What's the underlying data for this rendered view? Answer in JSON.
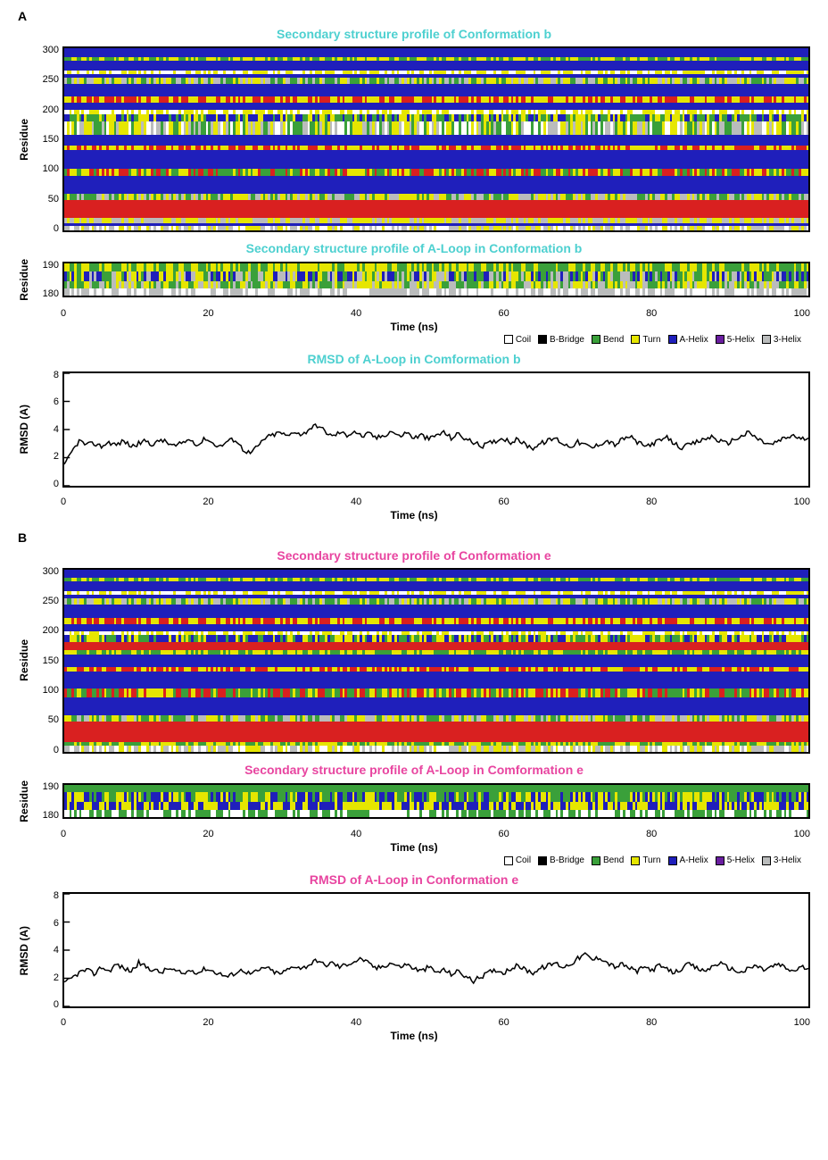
{
  "panelA": {
    "label": "A",
    "title_color": "#4dd0d0",
    "chart1": {
      "title": "Secondary structure profile of Conformation b",
      "type": "heatmap",
      "ylabel": "Residue",
      "xlabel": "Time (ns)",
      "ylim": [
        0,
        300
      ],
      "xlim": [
        0,
        100
      ],
      "yticks": [
        0,
        50,
        100,
        150,
        200,
        250,
        300
      ],
      "xticks": [
        0,
        20,
        40,
        60,
        80,
        100
      ],
      "bands": [
        {
          "y": 0,
          "h": 8,
          "colors": [
            "#ffffff",
            "#babcbc",
            "#e6e600"
          ]
        },
        {
          "y": 8,
          "h": 4,
          "colors": [
            "#1f1fbb"
          ]
        },
        {
          "y": 12,
          "h": 8,
          "colors": [
            "#e6e600",
            "#babcbc"
          ]
        },
        {
          "y": 20,
          "h": 30,
          "colors": [
            "#d92020"
          ]
        },
        {
          "y": 50,
          "h": 10,
          "colors": [
            "#e6e600",
            "#3aa03a",
            "#babcbc"
          ]
        },
        {
          "y": 60,
          "h": 30,
          "colors": [
            "#1f1fbb"
          ]
        },
        {
          "y": 90,
          "h": 12,
          "colors": [
            "#e6e600",
            "#3aa03a",
            "#d92020"
          ]
        },
        {
          "y": 102,
          "h": 30,
          "colors": [
            "#1f1fbb"
          ]
        },
        {
          "y": 132,
          "h": 8,
          "colors": [
            "#d92020",
            "#e6e600"
          ]
        },
        {
          "y": 140,
          "h": 18,
          "colors": [
            "#1f1fbb"
          ]
        },
        {
          "y": 158,
          "h": 22,
          "colors": [
            "#e6e600",
            "#3aa03a",
            "#ffffff",
            "#babcbc"
          ]
        },
        {
          "y": 180,
          "h": 12,
          "colors": [
            "#1f1fbb",
            "#e6e600",
            "#3aa03a"
          ]
        },
        {
          "y": 192,
          "h": 6,
          "colors": [
            "#e6e600",
            "#ffffff"
          ]
        },
        {
          "y": 198,
          "h": 12,
          "colors": [
            "#1f1fbb"
          ]
        },
        {
          "y": 210,
          "h": 10,
          "colors": [
            "#d92020",
            "#e6e600"
          ]
        },
        {
          "y": 220,
          "h": 22,
          "colors": [
            "#1f1fbb"
          ]
        },
        {
          "y": 242,
          "h": 10,
          "colors": [
            "#e6e600",
            "#3aa03a",
            "#babcbc"
          ]
        },
        {
          "y": 252,
          "h": 6,
          "colors": [
            "#1f1fbb"
          ]
        },
        {
          "y": 258,
          "h": 6,
          "colors": [
            "#e6e600",
            "#ffffff"
          ]
        },
        {
          "y": 264,
          "h": 16,
          "colors": [
            "#1f1fbb"
          ]
        },
        {
          "y": 280,
          "h": 6,
          "colors": [
            "#e6e600",
            "#3aa03a"
          ]
        },
        {
          "y": 286,
          "h": 14,
          "colors": [
            "#1f1fbb"
          ]
        }
      ]
    },
    "chart2": {
      "title": "Secondary structure profile of A-Loop in Conformation b",
      "type": "heatmap",
      "ylabel": "Residue",
      "ylim": [
        180,
        190
      ],
      "yticks": [
        180,
        190
      ],
      "bands": [
        {
          "h": 3,
          "colors": [
            "#babcbc",
            "#ffffff"
          ]
        },
        {
          "h": 3,
          "colors": [
            "#e6e600",
            "#babcbc",
            "#3aa03a"
          ]
        },
        {
          "h": 4,
          "colors": [
            "#1f1fbb",
            "#e6e600",
            "#3aa03a",
            "#babcbc"
          ]
        },
        {
          "h": 3,
          "colors": [
            "#3aa03a",
            "#e6e600"
          ]
        }
      ]
    },
    "chart3": {
      "title": "RMSD of A-Loop in Comformation b",
      "type": "line",
      "ylabel": "RMSD (A)",
      "xlabel": "Time (ns)",
      "ylim": [
        0,
        8
      ],
      "xlim": [
        0,
        100
      ],
      "yticks": [
        0,
        2,
        4,
        6,
        8
      ],
      "xticks": [
        0,
        20,
        40,
        60,
        80,
        100
      ],
      "line_color": "#000000",
      "line_width": 1.5,
      "data": [
        [
          0,
          1.4
        ],
        [
          1,
          2.4
        ],
        [
          2,
          3.2
        ],
        [
          3,
          2.9
        ],
        [
          4,
          3.0
        ],
        [
          5,
          2.8
        ],
        [
          6,
          3.1
        ],
        [
          7,
          2.9
        ],
        [
          8,
          3.2
        ],
        [
          9,
          2.8
        ],
        [
          10,
          3.0
        ],
        [
          11,
          3.2
        ],
        [
          12,
          2.9
        ],
        [
          13,
          3.3
        ],
        [
          14,
          3.0
        ],
        [
          15,
          2.8
        ],
        [
          16,
          3.1
        ],
        [
          17,
          3.3
        ],
        [
          18,
          2.9
        ],
        [
          19,
          3.4
        ],
        [
          20,
          3.0
        ],
        [
          21,
          2.8
        ],
        [
          22,
          3.2
        ],
        [
          23,
          3.3
        ],
        [
          24,
          2.6
        ],
        [
          25,
          2.3
        ],
        [
          26,
          2.8
        ],
        [
          27,
          3.4
        ],
        [
          28,
          3.6
        ],
        [
          29,
          3.8
        ],
        [
          30,
          3.5
        ],
        [
          31,
          3.9
        ],
        [
          32,
          3.6
        ],
        [
          33,
          4.1
        ],
        [
          34,
          4.3
        ],
        [
          35,
          3.9
        ],
        [
          36,
          3.5
        ],
        [
          37,
          3.8
        ],
        [
          38,
          3.6
        ],
        [
          39,
          3.9
        ],
        [
          40,
          3.5
        ],
        [
          41,
          3.7
        ],
        [
          42,
          3.4
        ],
        [
          43,
          3.6
        ],
        [
          44,
          3.9
        ],
        [
          45,
          3.5
        ],
        [
          46,
          3.8
        ],
        [
          47,
          3.4
        ],
        [
          48,
          3.6
        ],
        [
          49,
          3.3
        ],
        [
          50,
          3.6
        ],
        [
          51,
          3.8
        ],
        [
          52,
          3.4
        ],
        [
          53,
          3.7
        ],
        [
          54,
          3.3
        ],
        [
          55,
          3.1
        ],
        [
          56,
          2.8
        ],
        [
          57,
          3.0
        ],
        [
          58,
          3.2
        ],
        [
          59,
          3.4
        ],
        [
          60,
          3.1
        ],
        [
          61,
          3.3
        ],
        [
          62,
          2.9
        ],
        [
          63,
          2.7
        ],
        [
          64,
          3.0
        ],
        [
          65,
          3.2
        ],
        [
          66,
          3.4
        ],
        [
          67,
          3.0
        ],
        [
          68,
          2.8
        ],
        [
          69,
          3.1
        ],
        [
          70,
          2.9
        ],
        [
          71,
          2.7
        ],
        [
          72,
          3.0
        ],
        [
          73,
          3.2
        ],
        [
          74,
          2.9
        ],
        [
          75,
          3.3
        ],
        [
          76,
          3.5
        ],
        [
          77,
          3.1
        ],
        [
          78,
          2.8
        ],
        [
          79,
          3.0
        ],
        [
          80,
          3.2
        ],
        [
          81,
          3.4
        ],
        [
          82,
          3.0
        ],
        [
          83,
          2.7
        ],
        [
          84,
          2.9
        ],
        [
          85,
          3.1
        ],
        [
          86,
          3.3
        ],
        [
          87,
          3.5
        ],
        [
          88,
          3.2
        ],
        [
          89,
          3.0
        ],
        [
          90,
          3.3
        ],
        [
          91,
          3.5
        ],
        [
          92,
          3.8
        ],
        [
          93,
          3.4
        ],
        [
          94,
          3.1
        ],
        [
          95,
          2.9
        ],
        [
          96,
          3.2
        ],
        [
          97,
          3.4
        ],
        [
          98,
          3.6
        ],
        [
          99,
          3.3
        ],
        [
          100,
          3.4
        ]
      ]
    }
  },
  "panelB": {
    "label": "B",
    "title_color": "#e845a0",
    "chart1": {
      "title": "Secondary structure profile of Conformation e",
      "type": "heatmap",
      "ylabel": "Residue",
      "ylim": [
        0,
        300
      ],
      "yticks": [
        0,
        50,
        100,
        150,
        200,
        250,
        300
      ],
      "bands": [
        {
          "y": 0,
          "h": 10,
          "colors": [
            "#ffffff",
            "#babcbc",
            "#e6e600"
          ]
        },
        {
          "y": 10,
          "h": 6,
          "colors": [
            "#3aa03a",
            "#e6e600"
          ]
        },
        {
          "y": 16,
          "h": 34,
          "colors": [
            "#d92020"
          ]
        },
        {
          "y": 50,
          "h": 10,
          "colors": [
            "#e6e600",
            "#3aa03a",
            "#babcbc"
          ]
        },
        {
          "y": 60,
          "h": 30,
          "colors": [
            "#1f1fbb"
          ]
        },
        {
          "y": 90,
          "h": 14,
          "colors": [
            "#d92020",
            "#e6e600",
            "#3aa03a"
          ]
        },
        {
          "y": 104,
          "h": 28,
          "colors": [
            "#1f1fbb"
          ]
        },
        {
          "y": 132,
          "h": 8,
          "colors": [
            "#d92020",
            "#e6e600"
          ]
        },
        {
          "y": 140,
          "h": 20,
          "colors": [
            "#1f1fbb"
          ]
        },
        {
          "y": 160,
          "h": 8,
          "colors": [
            "#e6e600",
            "#3aa03a"
          ]
        },
        {
          "y": 168,
          "h": 12,
          "colors": [
            "#d92020"
          ]
        },
        {
          "y": 180,
          "h": 12,
          "colors": [
            "#1f1fbb",
            "#3aa03a",
            "#e6e600"
          ]
        },
        {
          "y": 192,
          "h": 6,
          "colors": [
            "#e6e600",
            "#ffffff"
          ]
        },
        {
          "y": 198,
          "h": 12,
          "colors": [
            "#1f1fbb"
          ]
        },
        {
          "y": 210,
          "h": 10,
          "colors": [
            "#d92020",
            "#e6e600"
          ]
        },
        {
          "y": 220,
          "h": 22,
          "colors": [
            "#1f1fbb"
          ]
        },
        {
          "y": 242,
          "h": 10,
          "colors": [
            "#e6e600",
            "#3aa03a",
            "#babcbc"
          ]
        },
        {
          "y": 252,
          "h": 6,
          "colors": [
            "#1f1fbb"
          ]
        },
        {
          "y": 258,
          "h": 6,
          "colors": [
            "#e6e600",
            "#ffffff"
          ]
        },
        {
          "y": 264,
          "h": 16,
          "colors": [
            "#1f1fbb"
          ]
        },
        {
          "y": 280,
          "h": 6,
          "colors": [
            "#e6e600",
            "#3aa03a"
          ]
        },
        {
          "y": 286,
          "h": 14,
          "colors": [
            "#1f1fbb"
          ]
        }
      ]
    },
    "chart2": {
      "title": "Secondary structure profile of A-Loop in Comformation e",
      "type": "heatmap",
      "ylabel": "Residue",
      "ylim": [
        180,
        190
      ],
      "yticks": [
        180,
        190
      ],
      "bands": [
        {
          "h": 3,
          "colors": [
            "#ffffff",
            "#3aa03a"
          ]
        },
        {
          "h": 3,
          "colors": [
            "#e6e600",
            "#1f1fbb"
          ]
        },
        {
          "h": 4,
          "colors": [
            "#1f1fbb",
            "#e6e600",
            "#3aa03a"
          ]
        },
        {
          "h": 3,
          "colors": [
            "#3aa03a"
          ]
        }
      ]
    },
    "chart3": {
      "title": "RMSD of A-Loop in Conformation e",
      "type": "line",
      "ylabel": "RMSD (A)",
      "xlabel": "Time (ns)",
      "ylim": [
        0,
        8
      ],
      "yticks": [
        0,
        2,
        4,
        6,
        8
      ],
      "xticks": [
        0,
        20,
        40,
        60,
        80,
        100
      ],
      "line_color": "#000000",
      "line_width": 1.5,
      "data": [
        [
          0,
          1.6
        ],
        [
          1,
          2.0
        ],
        [
          2,
          2.4
        ],
        [
          3,
          2.6
        ],
        [
          4,
          2.3
        ],
        [
          5,
          2.8
        ],
        [
          6,
          2.5
        ],
        [
          7,
          3.0
        ],
        [
          8,
          2.7
        ],
        [
          9,
          2.5
        ],
        [
          10,
          3.1
        ],
        [
          11,
          2.8
        ],
        [
          12,
          2.6
        ],
        [
          13,
          2.4
        ],
        [
          14,
          2.7
        ],
        [
          15,
          2.5
        ],
        [
          16,
          2.3
        ],
        [
          17,
          2.6
        ],
        [
          18,
          2.4
        ],
        [
          19,
          2.7
        ],
        [
          20,
          2.5
        ],
        [
          21,
          2.3
        ],
        [
          22,
          2.1
        ],
        [
          23,
          2.4
        ],
        [
          24,
          2.6
        ],
        [
          25,
          2.3
        ],
        [
          26,
          2.5
        ],
        [
          27,
          2.8
        ],
        [
          28,
          2.5
        ],
        [
          29,
          2.3
        ],
        [
          30,
          2.6
        ],
        [
          31,
          2.9
        ],
        [
          32,
          2.7
        ],
        [
          33,
          3.0
        ],
        [
          34,
          3.3
        ],
        [
          35,
          2.9
        ],
        [
          36,
          3.1
        ],
        [
          37,
          2.8
        ],
        [
          38,
          3.0
        ],
        [
          39,
          3.2
        ],
        [
          40,
          3.4
        ],
        [
          41,
          3.0
        ],
        [
          42,
          2.7
        ],
        [
          43,
          2.9
        ],
        [
          44,
          3.1
        ],
        [
          45,
          2.8
        ],
        [
          46,
          3.0
        ],
        [
          47,
          2.7
        ],
        [
          48,
          2.5
        ],
        [
          49,
          2.8
        ],
        [
          50,
          2.4
        ],
        [
          51,
          2.6
        ],
        [
          52,
          2.3
        ],
        [
          53,
          2.5
        ],
        [
          54,
          2.1
        ],
        [
          55,
          1.8
        ],
        [
          56,
          2.1
        ],
        [
          57,
          2.4
        ],
        [
          58,
          2.6
        ],
        [
          59,
          2.4
        ],
        [
          60,
          2.7
        ],
        [
          61,
          2.9
        ],
        [
          62,
          2.6
        ],
        [
          63,
          2.4
        ],
        [
          64,
          2.7
        ],
        [
          65,
          2.9
        ],
        [
          66,
          3.1
        ],
        [
          67,
          2.8
        ],
        [
          68,
          3.0
        ],
        [
          69,
          3.4
        ],
        [
          70,
          3.7
        ],
        [
          71,
          3.3
        ],
        [
          72,
          3.5
        ],
        [
          73,
          3.1
        ],
        [
          74,
          2.8
        ],
        [
          75,
          3.0
        ],
        [
          76,
          2.7
        ],
        [
          77,
          2.5
        ],
        [
          78,
          2.8
        ],
        [
          79,
          2.6
        ],
        [
          80,
          2.9
        ],
        [
          81,
          2.6
        ],
        [
          82,
          2.4
        ],
        [
          83,
          2.7
        ],
        [
          84,
          3.0
        ],
        [
          85,
          2.7
        ],
        [
          86,
          2.5
        ],
        [
          87,
          2.8
        ],
        [
          88,
          3.1
        ],
        [
          89,
          2.8
        ],
        [
          90,
          2.6
        ],
        [
          91,
          2.4
        ],
        [
          92,
          2.7
        ],
        [
          93,
          2.9
        ],
        [
          94,
          2.6
        ],
        [
          95,
          2.8
        ],
        [
          96,
          3.0
        ],
        [
          97,
          2.7
        ],
        [
          98,
          2.5
        ],
        [
          99,
          2.8
        ],
        [
          100,
          2.7
        ]
      ]
    }
  },
  "legend": {
    "items": [
      {
        "label": "Coil",
        "color": "#ffffff"
      },
      {
        "label": "B-Bridge",
        "color": "#000000"
      },
      {
        "label": "Bend",
        "color": "#3aa03a"
      },
      {
        "label": "Turn",
        "color": "#e6e600"
      },
      {
        "label": "A-Helix",
        "color": "#1f1fbb"
      },
      {
        "label": "5-Helix",
        "color": "#6a1ea0"
      },
      {
        "label": "3-Helix",
        "color": "#babcbc"
      }
    ]
  },
  "common": {
    "background_color": "#ffffff",
    "border_color": "#000000",
    "tick_fontsize": 11,
    "label_fontsize": 12,
    "title_fontsize": 14
  }
}
